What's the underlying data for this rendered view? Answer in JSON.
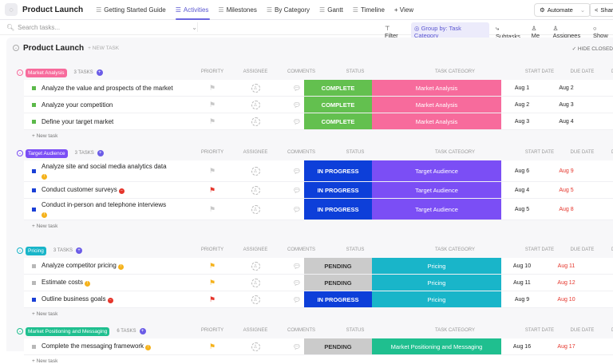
{
  "topbar": {
    "title": "Product Launch",
    "tabs": [
      {
        "label": "Getting Started Guide",
        "icon": "doc-icon"
      },
      {
        "label": "Activities",
        "icon": "list-icon",
        "active": true
      },
      {
        "label": "Milestones",
        "icon": "list-icon"
      },
      {
        "label": "By Category",
        "icon": "board-icon"
      },
      {
        "label": "Gantt",
        "icon": "gantt-icon"
      },
      {
        "label": "Timeline",
        "icon": "calendar-icon"
      }
    ],
    "add_view": "+ View",
    "automate": "Automate",
    "share": "Share"
  },
  "toolbar": {
    "search_placeholder": "Search tasks...",
    "filter": "Filter",
    "group_by": "Group by: Task Category",
    "subtasks": "Subtasks",
    "me": "Me",
    "assignees": "Assignees",
    "show": "Show"
  },
  "list": {
    "title": "Product Launch",
    "new_task": "+ NEW TASK",
    "hide_closed": "✓ HIDE CLOSED"
  },
  "columns": {
    "priority": "PRIORITY",
    "assignee": "ASSIGNEE",
    "comments": "COMMENTS",
    "status": "STATUS",
    "category": "TASK CATEGORY",
    "start": "START DATE",
    "due": "DUE DATE",
    "duration": "DURATI"
  },
  "new_task_row": "+ New task",
  "status_colors": {
    "COMPLETE": "#63c04f",
    "IN PROGRESS": "#0d3fd9",
    "PENDING": "#cbcbcb"
  },
  "groups": [
    {
      "name": "Market Analysis",
      "count": "3 TASKS",
      "color": "#f76b9c",
      "tasks": [
        {
          "name": "Analyze the value and prospects of the market",
          "priority": "none",
          "comments": "1",
          "status": "COMPLETE",
          "category": "Market Analysis",
          "start": "Aug 1",
          "due": "Aug 2",
          "overdue": false
        },
        {
          "name": "Analyze your competition",
          "priority": "none",
          "comments": "1",
          "status": "COMPLETE",
          "category": "Market Analysis",
          "start": "Aug 2",
          "due": "Aug 3",
          "overdue": false
        },
        {
          "name": "Define your target market",
          "priority": "none",
          "comments": "",
          "status": "COMPLETE",
          "category": "Market Analysis",
          "start": "Aug 3",
          "due": "Aug 4",
          "overdue": false
        }
      ]
    },
    {
      "name": "Target Audience",
      "count": "3 TASKS",
      "color": "#7b4ef5",
      "tasks": [
        {
          "name": "Analyze site and social media analytics data",
          "tag": "yellow",
          "priority": "none",
          "comments": "",
          "status": "IN PROGRESS",
          "category": "Target Audience",
          "start": "Aug 6",
          "due": "Aug 9",
          "overdue": true,
          "tall": true
        },
        {
          "name": "Conduct customer surveys",
          "tag": "red",
          "priority": "urgent",
          "comments": "",
          "status": "IN PROGRESS",
          "category": "Target Audience",
          "start": "Aug 4",
          "due": "Aug 5",
          "overdue": true
        },
        {
          "name": "Conduct in-person and telephone interviews",
          "tag": "yellow",
          "priority": "none",
          "comments": "",
          "status": "IN PROGRESS",
          "category": "Target Audience",
          "start": "Aug 5",
          "due": "Aug 8",
          "overdue": true,
          "tall": true
        }
      ]
    },
    {
      "name": "Pricing",
      "count": "3 TASKS",
      "color": "#19b5c9",
      "tasks": [
        {
          "name": "Analyze competitor pricing",
          "tag": "yellow",
          "priority": "high",
          "comments": "",
          "status": "PENDING",
          "category": "Pricing",
          "start": "Aug 10",
          "due": "Aug 11",
          "overdue": true
        },
        {
          "name": "Estimate costs",
          "tag": "yellow",
          "priority": "high",
          "comments": "",
          "status": "PENDING",
          "category": "Pricing",
          "start": "Aug 11",
          "due": "Aug 12",
          "overdue": true
        },
        {
          "name": "Outline business goals",
          "tag": "red",
          "priority": "urgent",
          "comments": "",
          "status": "IN PROGRESS",
          "category": "Pricing",
          "start": "Aug 9",
          "due": "Aug 10",
          "overdue": true
        }
      ]
    },
    {
      "name": "Market Positioning and Messaging",
      "count": "6 TASKS",
      "color": "#1fbf8f",
      "tasks": [
        {
          "name": "Complete the messaging framework",
          "tag": "yellow",
          "priority": "high",
          "comments": "",
          "status": "PENDING",
          "category": "Market Positioning and Messaging",
          "start": "Aug 16",
          "due": "Aug 17",
          "overdue": true
        }
      ]
    }
  ]
}
